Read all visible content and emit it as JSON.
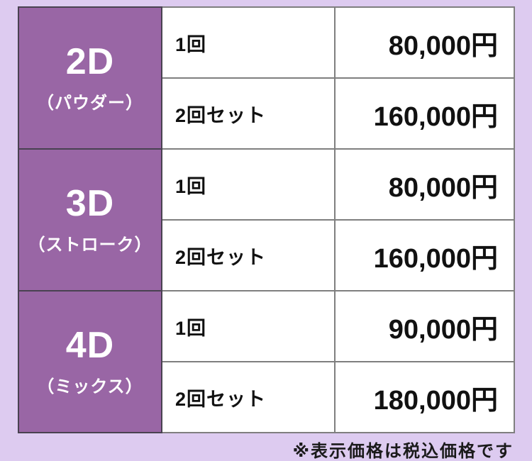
{
  "table": {
    "sections": [
      {
        "name": "2D",
        "subtitle": "（パウダー）",
        "rows": [
          {
            "label": "1回",
            "price": "80,000円"
          },
          {
            "label": "2回セット",
            "price": "160,000円"
          }
        ]
      },
      {
        "name": "3D",
        "subtitle": "（ストローク）",
        "rows": [
          {
            "label": "1回",
            "price": "80,000円"
          },
          {
            "label": "2回セット",
            "price": "160,000円"
          }
        ]
      },
      {
        "name": "4D",
        "subtitle": "（ミックス）",
        "rows": [
          {
            "label": "1回",
            "price": "90,000円"
          },
          {
            "label": "2回セット",
            "price": "180,000円"
          }
        ]
      }
    ]
  },
  "footer": {
    "note": "※表示価格は税込価格です"
  },
  "colors": {
    "page_background": "#DDCBF0",
    "category_fill": "#9966A5",
    "category_text": "#FFFFFF",
    "category_border": "#494251",
    "grid_line": "#7F7F7F",
    "cell_background": "#FFFFFF",
    "text": "#111111"
  }
}
